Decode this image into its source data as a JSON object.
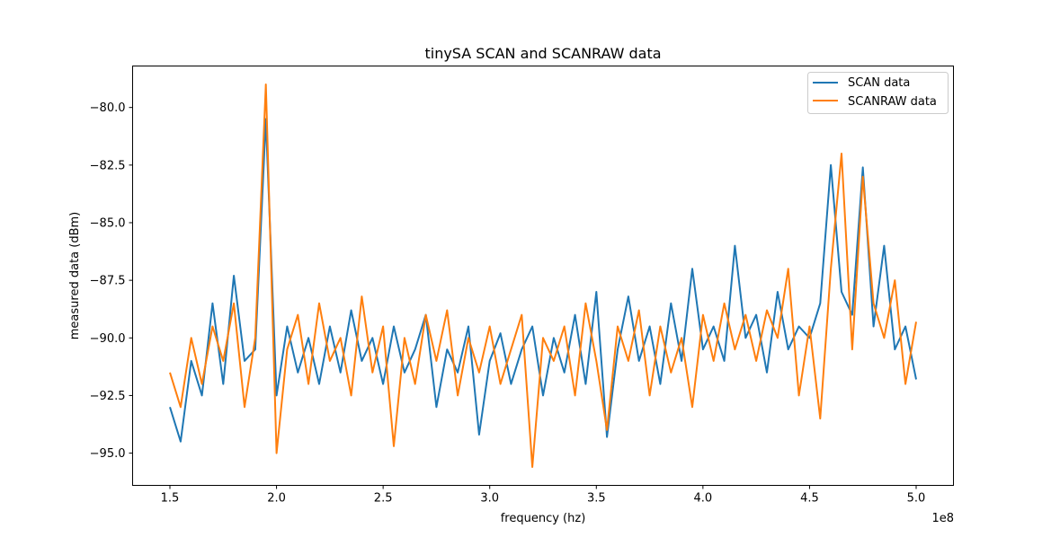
{
  "chart_data": {
    "type": "line",
    "title": "tinySA SCAN and SCANRAW data",
    "xlabel": "frequency (hz)",
    "ylabel": "measured data (dBm)",
    "x_offset_label": "1e8",
    "xlim": [
      132500000.0,
      517500000.0
    ],
    "ylim": [
      -96.4,
      -78.2
    ],
    "xticks": [
      150000000.0,
      200000000.0,
      250000000.0,
      300000000.0,
      350000000.0,
      400000000.0,
      450000000.0,
      500000000.0
    ],
    "xtick_labels": [
      "1.5",
      "2.0",
      "2.5",
      "3.0",
      "3.5",
      "4.0",
      "4.5",
      "5.0"
    ],
    "yticks": [
      -80,
      -82.5,
      -85,
      -87.5,
      -90,
      -92.5,
      -95
    ],
    "ytick_labels": [
      "−80.0",
      "−82.5",
      "−85.0",
      "−87.5",
      "−90.0",
      "−92.5",
      "−95.0"
    ],
    "grid": false,
    "legend_position": "top-right",
    "x": [
      150000000.0,
      155000000.0,
      160000000.0,
      165000000.0,
      170000000.0,
      175000000.0,
      180000000.0,
      185000000.0,
      190000000.0,
      195000000.0,
      200000000.0,
      205000000.0,
      210000000.0,
      215000000.0,
      220000000.0,
      225000000.0,
      230000000.0,
      235000000.0,
      240000000.0,
      245000000.0,
      250000000.0,
      255000000.0,
      260000000.0,
      265000000.0,
      270000000.0,
      275000000.0,
      280000000.0,
      285000000.0,
      290000000.0,
      295000000.0,
      300000000.0,
      305000000.0,
      310000000.0,
      315000000.0,
      320000000.0,
      325000000.0,
      330000000.0,
      335000000.0,
      340000000.0,
      345000000.0,
      350000000.0,
      355000000.0,
      360000000.0,
      365000000.0,
      370000000.0,
      375000000.0,
      380000000.0,
      385000000.0,
      390000000.0,
      395000000.0,
      400000000.0,
      405000000.0,
      410000000.0,
      415000000.0,
      420000000.0,
      425000000.0,
      430000000.0,
      435000000.0,
      440000000.0,
      445000000.0,
      450000000.0,
      455000000.0,
      460000000.0,
      465000000.0,
      470000000.0,
      475000000.0,
      480000000.0,
      485000000.0,
      490000000.0,
      495000000.0,
      500000000.0
    ],
    "series": [
      {
        "name": "SCAN data",
        "color": "#1f77b4",
        "values": [
          -93.0,
          -94.5,
          -91.0,
          -92.5,
          -88.5,
          -92.0,
          -87.3,
          -91.0,
          -90.5,
          -80.5,
          -92.5,
          -89.5,
          -91.5,
          -90.0,
          -92.0,
          -89.5,
          -91.5,
          -88.8,
          -91.0,
          -90.0,
          -92.0,
          -89.5,
          -91.5,
          -90.5,
          -89.0,
          -93.0,
          -90.5,
          -91.5,
          -89.5,
          -94.2,
          -91.0,
          -89.8,
          -92.0,
          -90.5,
          -89.5,
          -92.5,
          -90.0,
          -91.5,
          -89.0,
          -92.0,
          -88.0,
          -94.3,
          -90.5,
          -88.2,
          -91.0,
          -89.5,
          -92.0,
          -88.5,
          -91.0,
          -87.0,
          -90.5,
          -89.5,
          -91.0,
          -86.0,
          -90.0,
          -89.0,
          -91.5,
          -88.0,
          -90.5,
          -89.5,
          -90.0,
          -88.5,
          -82.5,
          -88.0,
          -89.0,
          -82.6,
          -89.5,
          -86.0,
          -90.5,
          -89.5,
          -91.8
        ]
      },
      {
        "name": "SCANRAW data",
        "color": "#ff7f0e",
        "values": [
          -91.5,
          -93.0,
          -90.0,
          -92.0,
          -89.5,
          -91.0,
          -88.5,
          -93.0,
          -90.0,
          -79.0,
          -95.0,
          -90.5,
          -89.0,
          -92.0,
          -88.5,
          -91.0,
          -90.0,
          -92.5,
          -88.2,
          -91.5,
          -89.5,
          -94.7,
          -90.0,
          -92.0,
          -89.0,
          -91.0,
          -88.8,
          -92.5,
          -90.0,
          -91.5,
          -89.5,
          -92.0,
          -90.5,
          -89.0,
          -95.6,
          -90.0,
          -91.0,
          -89.5,
          -92.5,
          -88.5,
          -91.0,
          -94.0,
          -89.5,
          -91.0,
          -88.8,
          -92.5,
          -89.5,
          -91.5,
          -90.0,
          -93.0,
          -89.0,
          -91.0,
          -88.5,
          -90.5,
          -89.0,
          -91.0,
          -88.8,
          -90.0,
          -87.0,
          -92.5,
          -89.5,
          -93.5,
          -87.0,
          -82.0,
          -90.5,
          -83.0,
          -88.5,
          -90.0,
          -87.5,
          -92.0,
          -89.3
        ]
      }
    ]
  }
}
